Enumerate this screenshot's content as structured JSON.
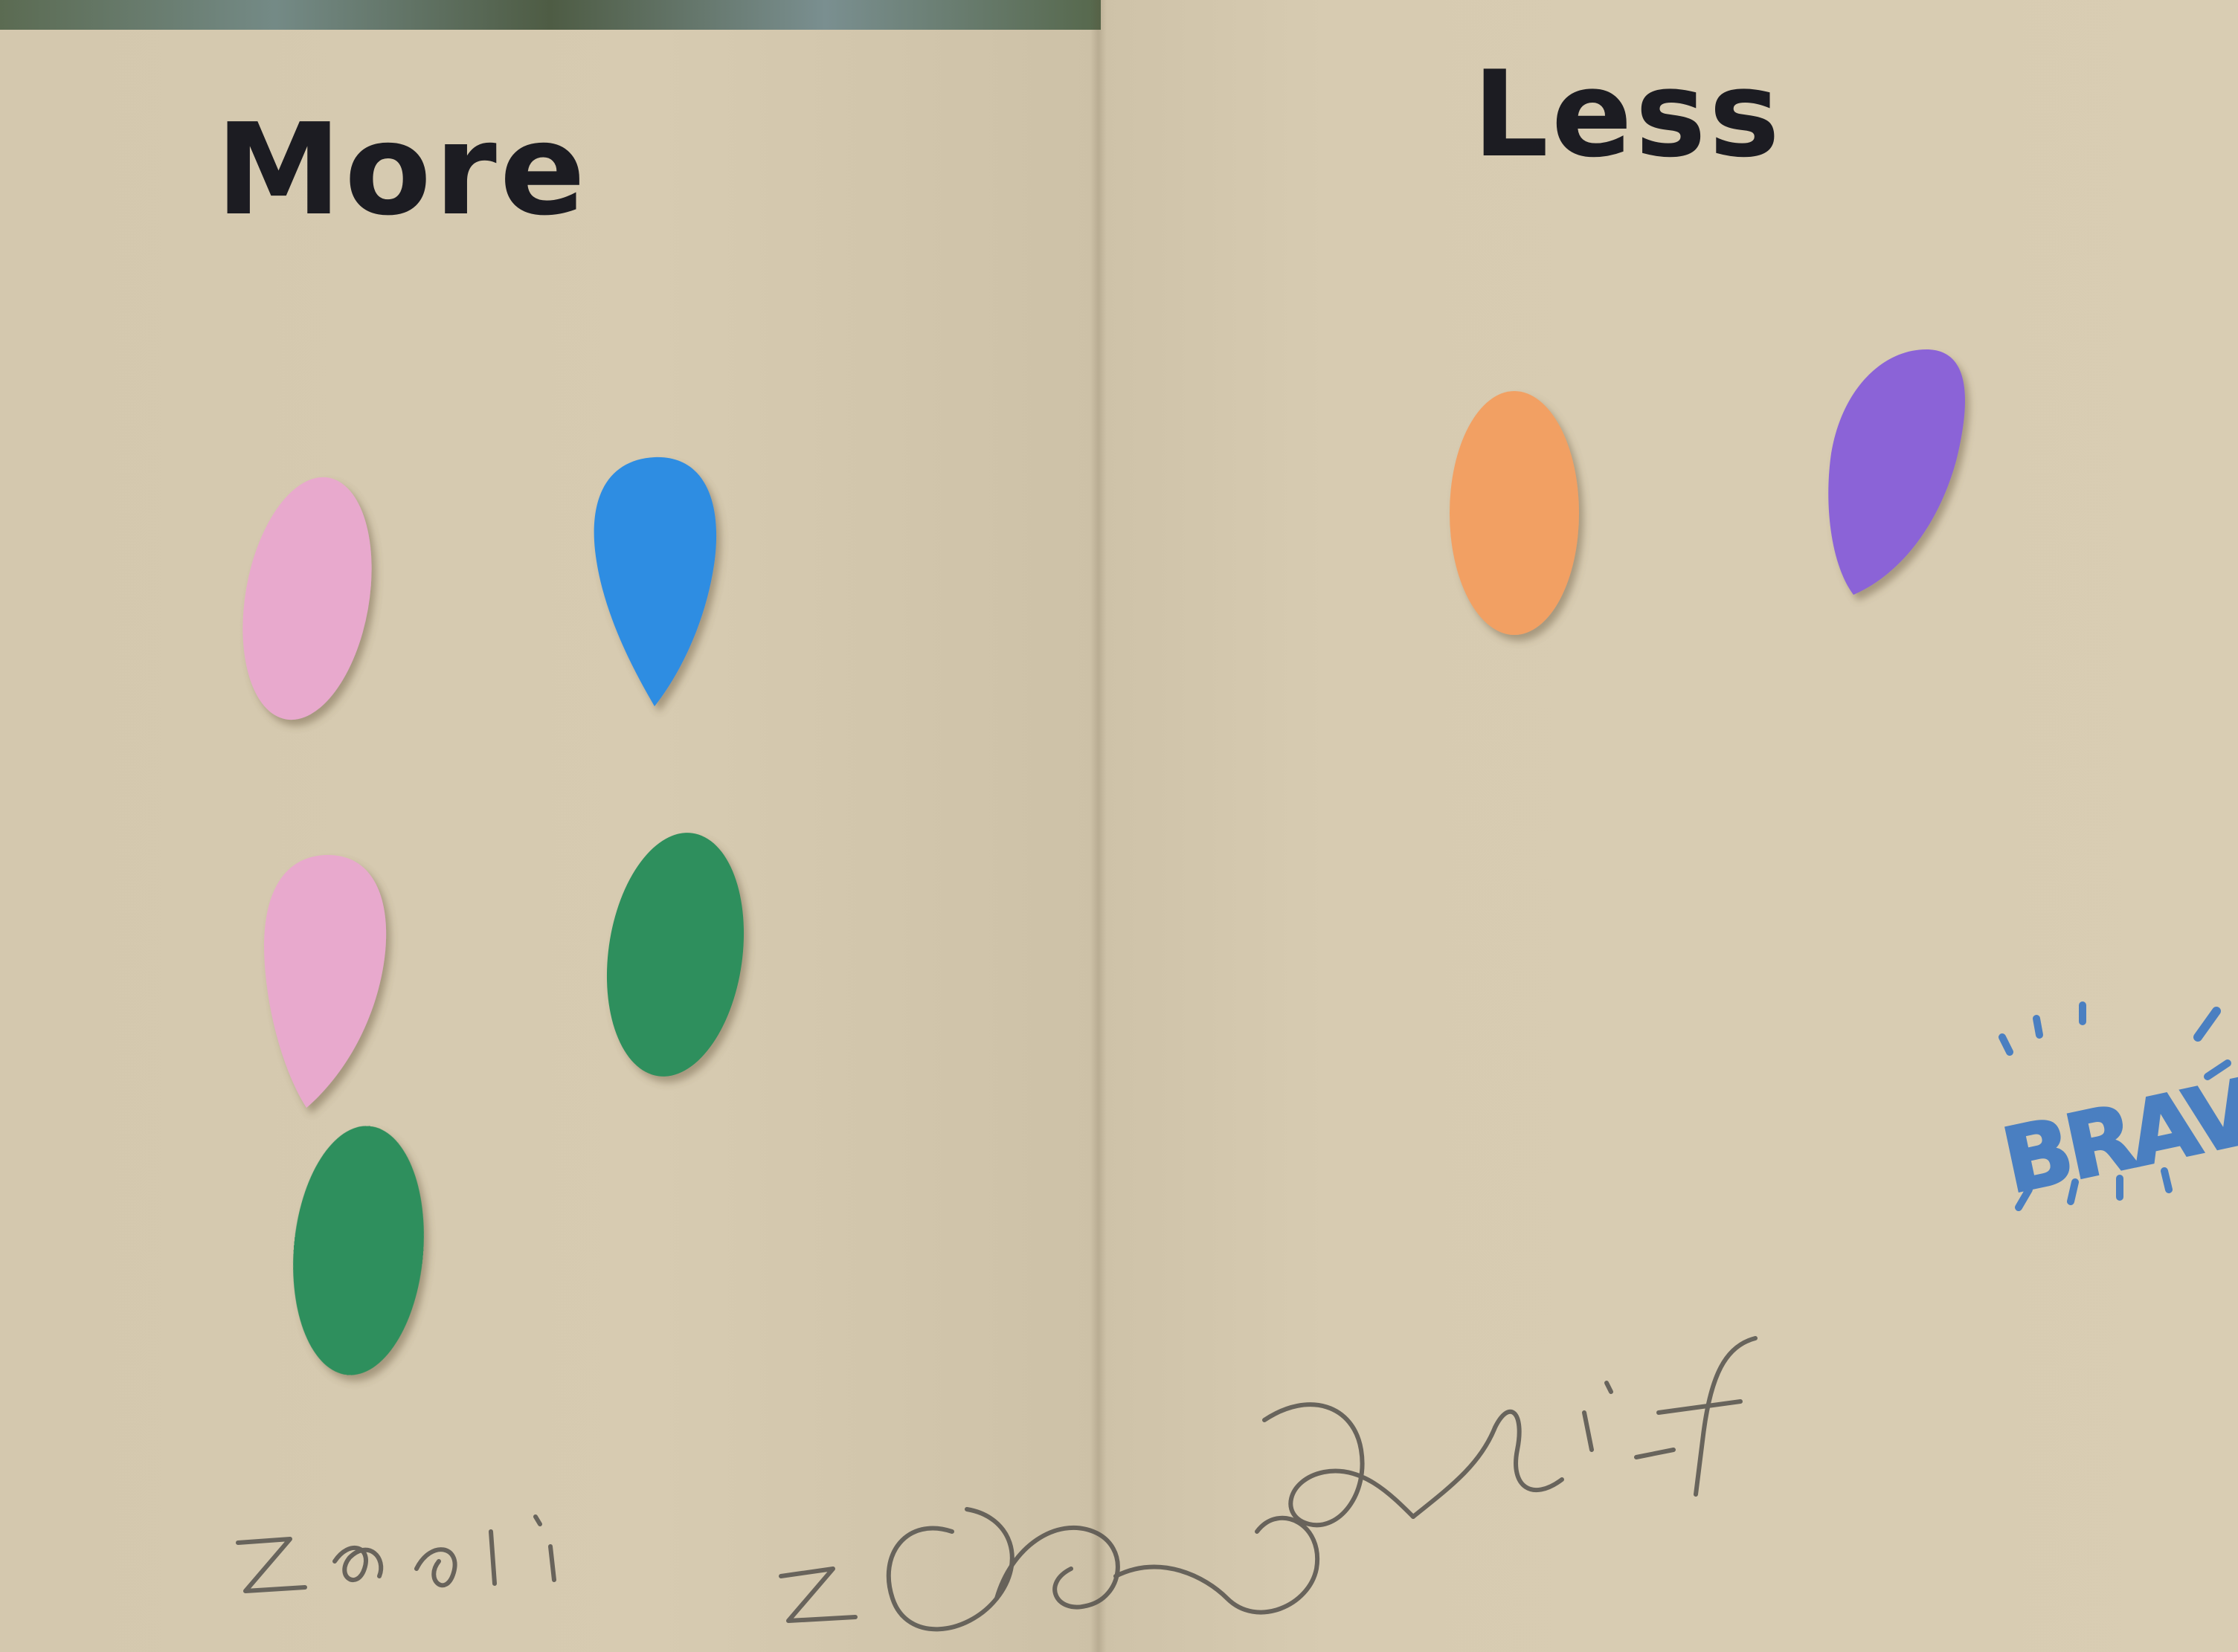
{
  "headings": {
    "left": "More",
    "right": "Less"
  },
  "stamp": {
    "text": "BRAVO!",
    "color": "#4a7fc1"
  },
  "colors": {
    "paper": "#d7cbb1",
    "marker_ink": "#1c1c22",
    "pencil": "#55524d",
    "pink": "#e7a7cc",
    "blue": "#2e8be0",
    "green": "#2f8f5c",
    "orange": "#f2a064",
    "purple": "#8a63d6"
  },
  "counts": {
    "more_column_shapes": 5,
    "less_column_shapes": 2
  }
}
